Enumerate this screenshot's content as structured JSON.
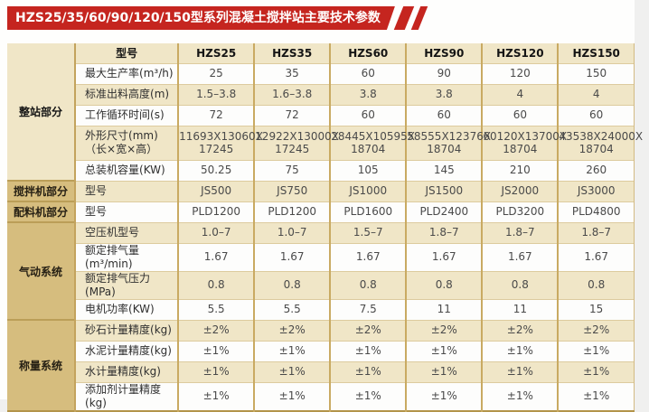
{
  "page": {
    "background": "#f0f0ef",
    "content_background": "#fefefd"
  },
  "banner": {
    "title": "HZS25/35/60/90/120/150型系列混凝土搅拌站主要技术参数",
    "color": "#c5251f",
    "text_color": "#ffffff"
  },
  "table": {
    "colors": {
      "group_column": "#d6bd7e",
      "row_beige": "#f0e6c7",
      "row_white": "#fdfdfc",
      "grid_dark": "#c9aa62",
      "grid_light": "#ddcb9e",
      "outer_bottom_border": "#b3944a",
      "value_text": "#4a4a4a"
    },
    "header": {
      "label": "型号",
      "models": [
        "HZS25",
        "HZS35",
        "HZS60",
        "HZS90",
        "HZS120",
        "HZS150"
      ]
    },
    "groups": [
      {
        "name": "整站部分",
        "rows": [
          {
            "label": "最大生产率(m³/h)",
            "values": [
              "25",
              "35",
              "60",
              "90",
              "120",
              "150"
            ]
          },
          {
            "label": "标准出料高度(m)",
            "values": [
              "1.5–3.8",
              "1.6–3.8",
              "3.8",
              "3.8",
              "4",
              "4"
            ]
          },
          {
            "label": "工作循环时间(s)",
            "values": [
              "72",
              "72",
              "60",
              "60",
              "60",
              "60"
            ]
          },
          {
            "label": "外形尺寸(mm)\n（长×宽×高）",
            "values": [
              "11693X13060X\n17245",
              "12922X13000X\n17245",
              "28445X10595X\n18704",
              "58555X12376X\n18704",
              "60120X13700X\n18704",
              "43538X24000X\n18704"
            ]
          },
          {
            "label": "总装机容量(KW)",
            "values": [
              "50.25",
              "75",
              "105",
              "145",
              "210",
              "260"
            ]
          }
        ]
      },
      {
        "name": "搅拌机部分",
        "rows": [
          {
            "label": "型号",
            "values": [
              "JS500",
              "JS750",
              "JS1000",
              "JS1500",
              "JS2000",
              "JS3000"
            ]
          }
        ]
      },
      {
        "name": "配料机部分",
        "rows": [
          {
            "label": "型号",
            "values": [
              "PLD1200",
              "PLD1200",
              "PLD1600",
              "PLD2400",
              "PLD3200",
              "PLD4800"
            ]
          }
        ]
      },
      {
        "name": "气动系统",
        "rows": [
          {
            "label": "空压机型号",
            "values": [
              "1.0–7",
              "1.0–7",
              "1.5–7",
              "1.8–7",
              "1.8–7",
              "1.8–7"
            ]
          },
          {
            "label": "额定排气量(m³/min)",
            "values": [
              "1.67",
              "1.67",
              "1.67",
              "1.67",
              "1.67",
              "1.67"
            ]
          },
          {
            "label": "额定排气压力(MPa)",
            "values": [
              "0.8",
              "0.8",
              "0.8",
              "0.8",
              "0.8",
              "0.8"
            ]
          },
          {
            "label": "电机功率(KW)",
            "values": [
              "5.5",
              "5.5",
              "7.5",
              "11",
              "11",
              "15"
            ]
          }
        ]
      },
      {
        "name": "称量系统",
        "rows": [
          {
            "label": "砂石计量精度(kg)",
            "values": [
              "±2%",
              "±2%",
              "±2%",
              "±2%",
              "±2%",
              "±2%"
            ]
          },
          {
            "label": "水泥计量精度(kg)",
            "values": [
              "±1%",
              "±1%",
              "±1%",
              "±1%",
              "±1%",
              "±1%"
            ]
          },
          {
            "label": "水计量精度(kg)",
            "values": [
              "±1%",
              "±1%",
              "±1%",
              "±1%",
              "±1%",
              "±1%"
            ]
          },
          {
            "label": "添加剂计量精度(kg)",
            "values": [
              "±1%",
              "±1%",
              "±1%",
              "±1%",
              "±1%",
              "±1%"
            ]
          }
        ]
      }
    ]
  }
}
